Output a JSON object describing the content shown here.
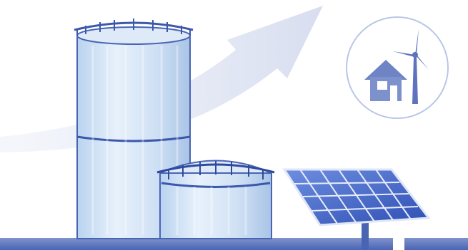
{
  "illustration": {
    "subject": "",
    "elements": {
      "growth_arrow": {
        "icon": "arrow-up-right-icon"
      },
      "tall_tank": {
        "icon": "storage-tank-icon"
      },
      "short_tank": {
        "icon": "storage-tank-icon"
      },
      "solar_panel": {
        "icon": "solar-panel-icon"
      },
      "energy_badge": {
        "icons": [
          "house-icon",
          "wind-turbine-icon"
        ]
      },
      "ground_pipe": {
        "icon": "pipeline-icon"
      }
    },
    "colors": {
      "background": "#ffffff",
      "primary_blue": "#4a64b4",
      "dark_blue": "#2f4a9c",
      "light_blue": "#cfe0f4",
      "arrow_blue": "#dde3f2",
      "panel_blue": "#3b5fc8",
      "badge_stroke": "#b9c6e6"
    }
  }
}
